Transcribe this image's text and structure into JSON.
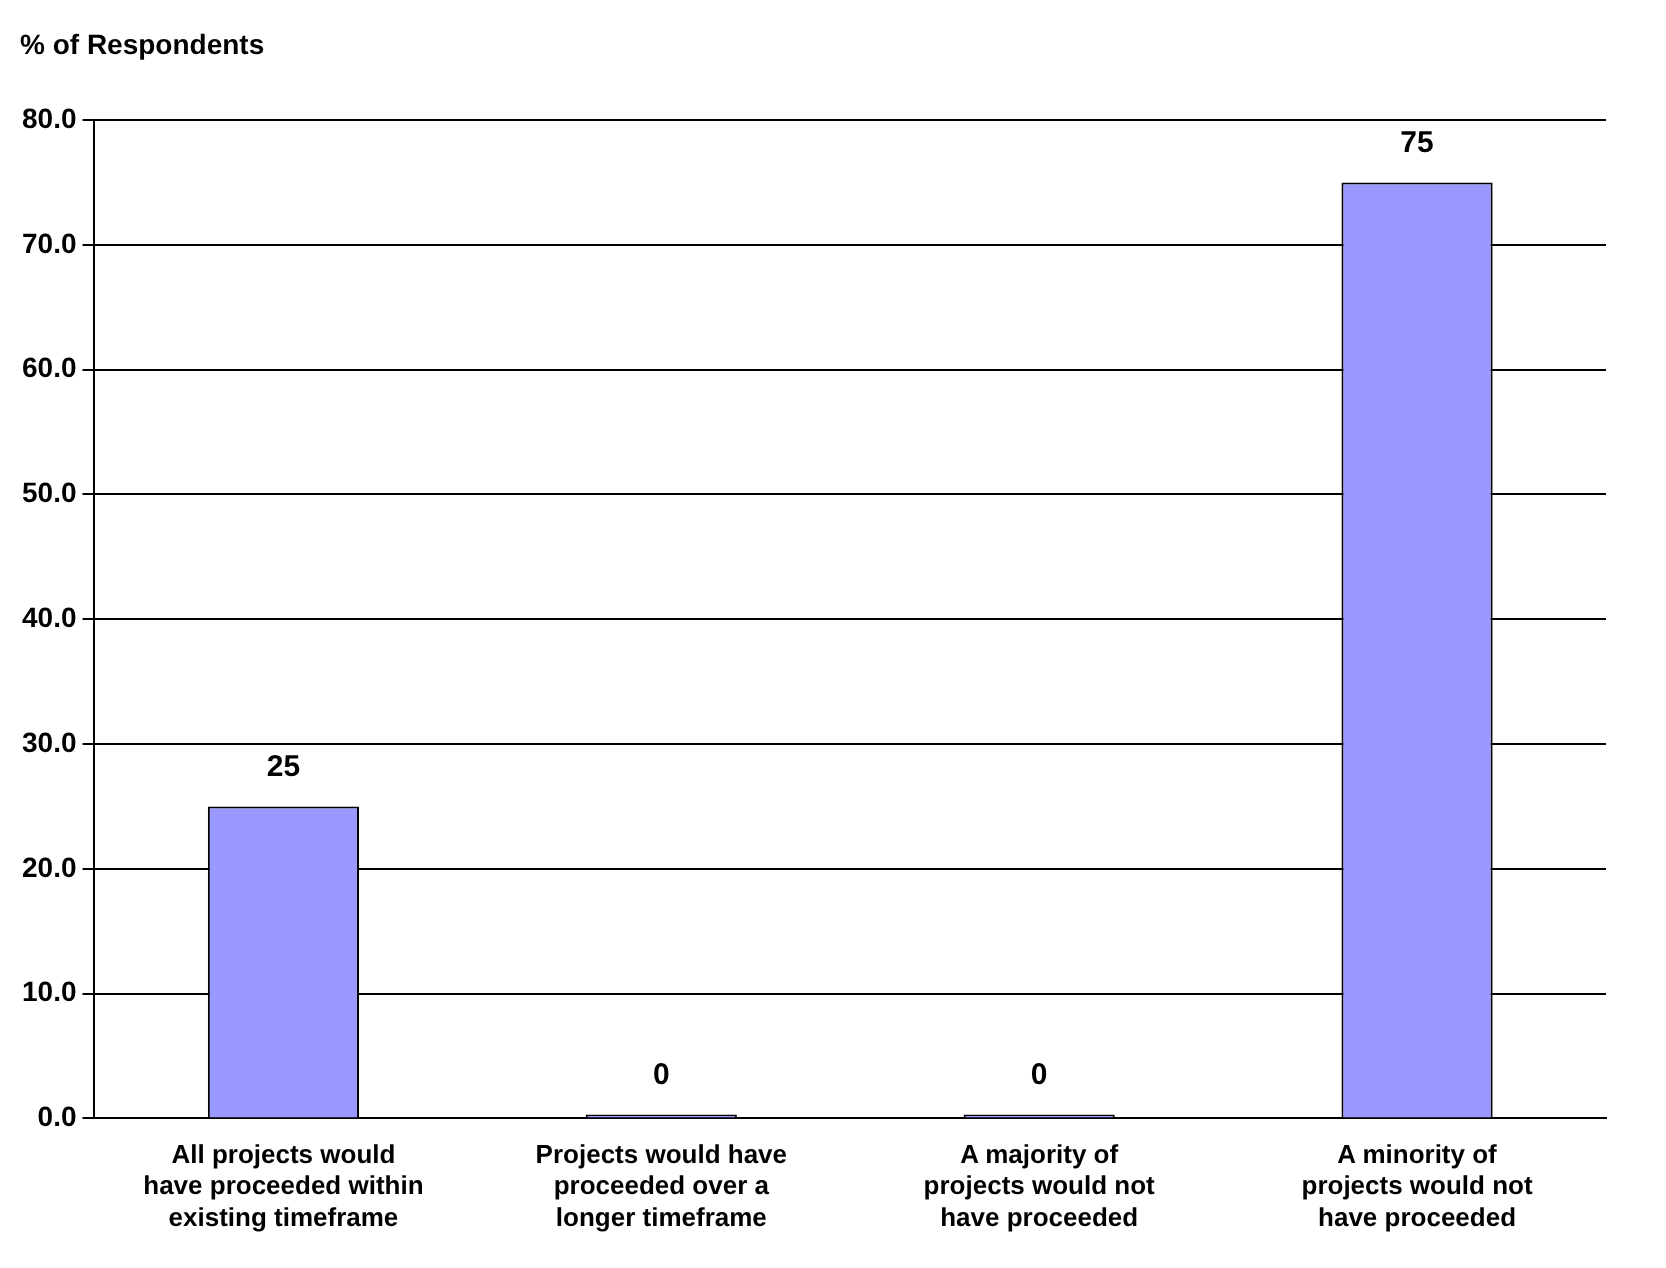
{
  "chart_data": {
    "type": "bar",
    "ylabel": "% of Respondents",
    "categories": [
      "All projects would have proceeded within existing timeframe",
      "Projects would have proceeded over a longer timeframe",
      "A majority of projects would not have proceeded",
      "A minority of projects would not have proceeded"
    ],
    "values": [
      25,
      0,
      0,
      75
    ],
    "color": "#9999ff",
    "ylim": [
      0,
      80
    ],
    "yticks": [
      {
        "value": 0,
        "label": "0.0"
      },
      {
        "value": 10,
        "label": "10.0"
      },
      {
        "value": 20,
        "label": "20.0"
      },
      {
        "value": 30,
        "label": "30.0"
      },
      {
        "value": 40,
        "label": "40.0"
      },
      {
        "value": 50,
        "label": "50.0"
      },
      {
        "value": 60,
        "label": "60.0"
      },
      {
        "value": 70,
        "label": "70.0"
      },
      {
        "value": 80,
        "label": "80.0"
      }
    ],
    "grid": "y",
    "data_labels": true,
    "legend": false
  }
}
